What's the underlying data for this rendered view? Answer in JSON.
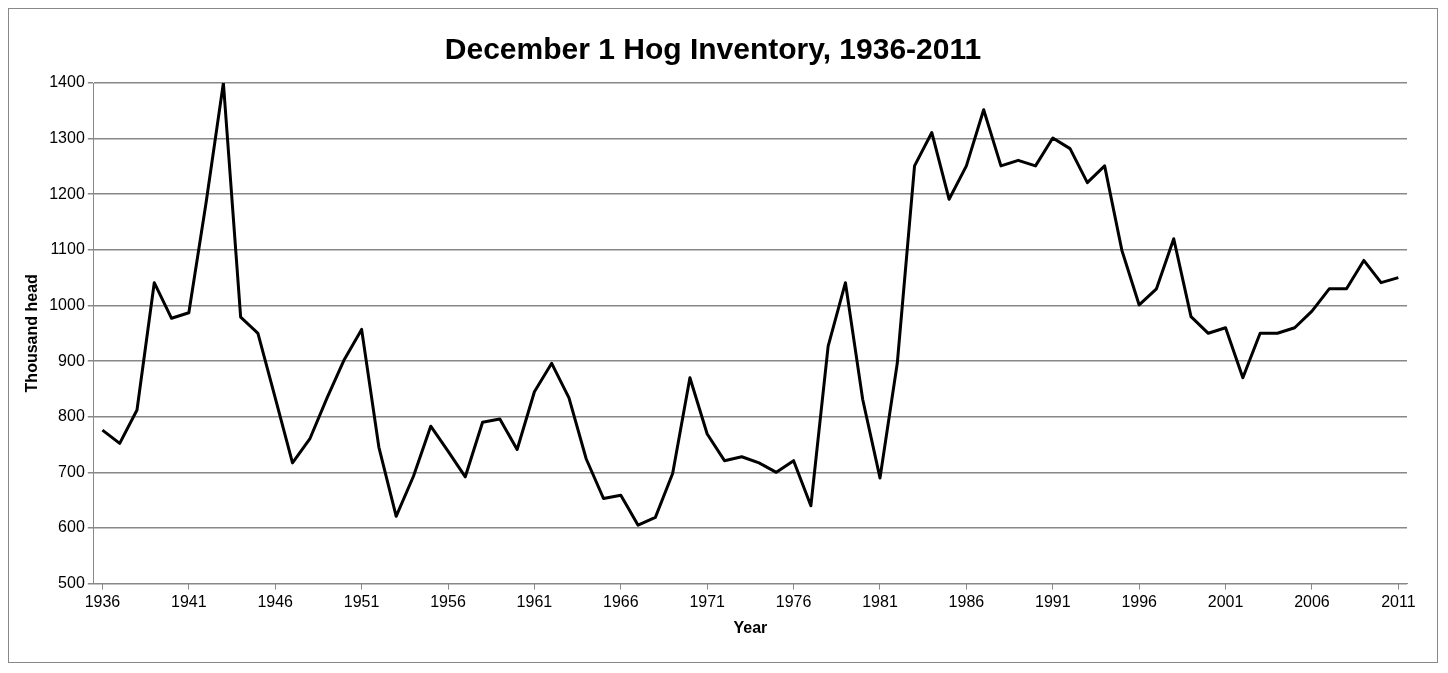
{
  "chart_data": {
    "type": "line",
    "title": "December 1 Hog Inventory, 1936-2011",
    "xlabel": "Year",
    "ylabel": "Thousand head",
    "categories": [
      "1936",
      null,
      null,
      null,
      null,
      "1941",
      null,
      null,
      null,
      null,
      "1946",
      null,
      null,
      null,
      null,
      "1951",
      null,
      null,
      null,
      null,
      "1956",
      null,
      null,
      null,
      null,
      "1961",
      null,
      null,
      null,
      null,
      "1966",
      null,
      null,
      null,
      null,
      "1971",
      null,
      null,
      null,
      null,
      "1976",
      null,
      null,
      null,
      null,
      "1981",
      null,
      null,
      null,
      null,
      "1986",
      null,
      null,
      null,
      null,
      "1991",
      null,
      null,
      null,
      null,
      "1996",
      null,
      null,
      null,
      null,
      "2001",
      null,
      null,
      null,
      null,
      "2006",
      null,
      null,
      null,
      null,
      "2011"
    ],
    "series": [
      {
        "color": "#000000",
        "values": [
          776,
          752,
          812,
          1041,
          977,
          987,
          1185,
          1400,
          979,
          950,
          834,
          717,
          760,
          834,
          903,
          957,
          745,
          621,
          693,
          783,
          738,
          692,
          790,
          796,
          741,
          845,
          896,
          834,
          724,
          653,
          659,
          605,
          619,
          698,
          870,
          769,
          721,
          728,
          717,
          700,
          721,
          640,
          927,
          1041,
          831,
          690,
          896,
          1251,
          1311,
          1191,
          1251,
          1352,
          1251,
          1261,
          1251,
          1301,
          1282,
          1221,
          1251,
          1099,
          1001,
          1030,
          1120,
          980,
          950,
          960,
          870,
          950,
          950,
          960,
          990,
          1030,
          1030,
          1081,
          1041,
          1050
        ]
      }
    ],
    "ylim": [
      500,
      1400
    ],
    "yticks": [
      500,
      600,
      700,
      800,
      900,
      1000,
      1100,
      1200,
      1300,
      1400
    ],
    "grid": "y",
    "legend": false,
    "marker": "none",
    "line_style": "solid"
  }
}
